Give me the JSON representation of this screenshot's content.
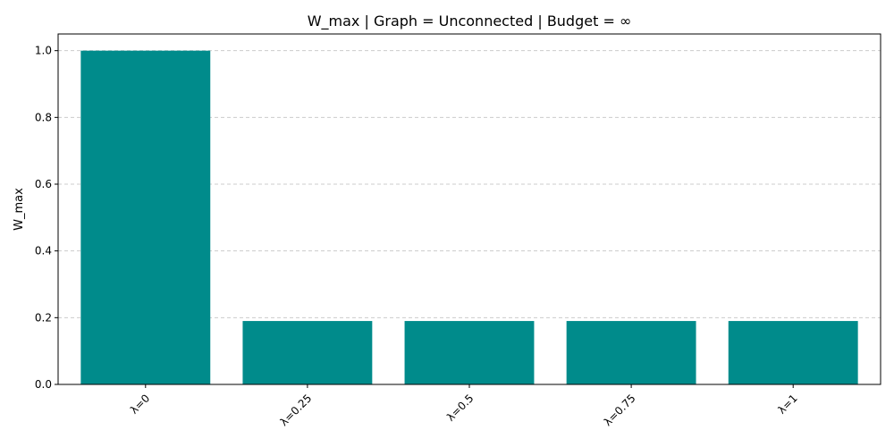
{
  "chart_data": {
    "type": "bar",
    "title": "W_max | Graph = Unconnected | Budget = ∞",
    "xlabel": "",
    "ylabel": "W_max",
    "categories": [
      "λ=0",
      "λ=0.25",
      "λ=0.5",
      "λ=0.75",
      "λ=1"
    ],
    "values": [
      1.0,
      0.19,
      0.19,
      0.19,
      0.19
    ],
    "ylim": [
      0,
      1.05
    ],
    "yticks": [
      0.0,
      0.2,
      0.4,
      0.6,
      0.8,
      1.0
    ],
    "ytick_labels": [
      "0.0",
      "0.2",
      "0.4",
      "0.6",
      "0.8",
      "1.0"
    ],
    "grid": "y-dashed",
    "bar_color": "#008b8b",
    "xtick_rotation": 45
  }
}
